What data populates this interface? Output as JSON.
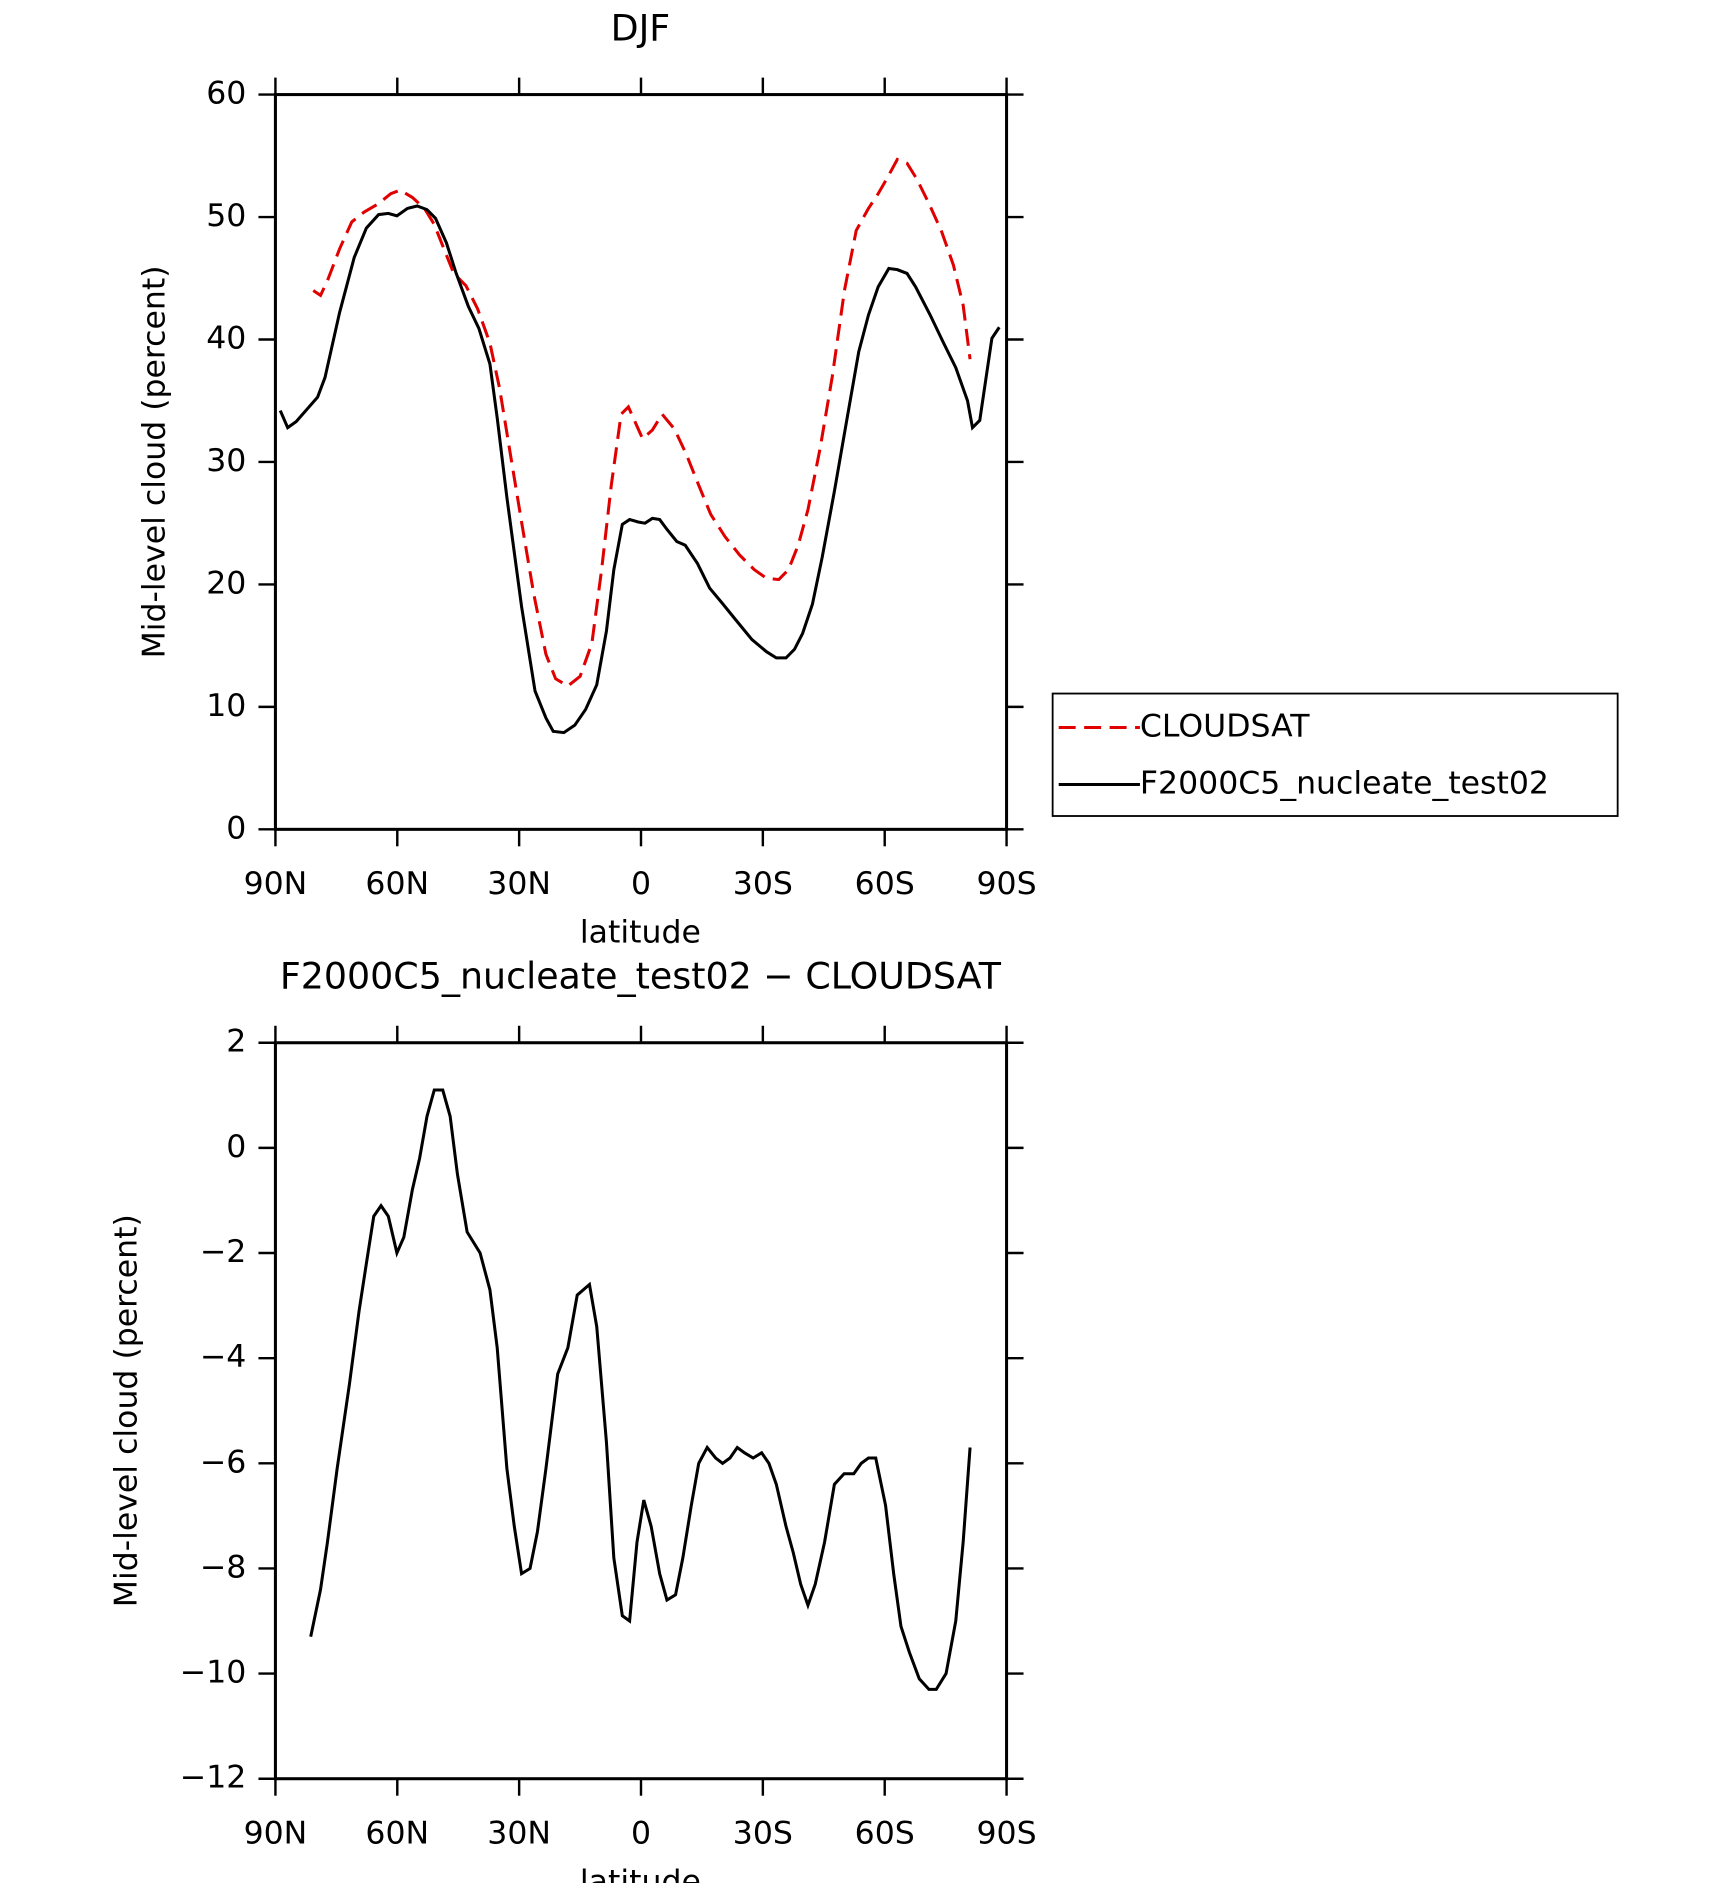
{
  "chart_data": [
    {
      "type": "line",
      "title": "DJF",
      "x_label": "latitude",
      "y_label": "Mid-level cloud (percent)",
      "xlim": [
        90,
        -90
      ],
      "xticks": [
        {
          "value": 90,
          "label": "90N"
        },
        {
          "value": 60,
          "label": "60N"
        },
        {
          "value": 30,
          "label": "30N"
        },
        0,
        {
          "value": -30,
          "label": "30S"
        },
        {
          "value": -60,
          "label": "60S"
        },
        {
          "value": -90,
          "label": "90S"
        }
      ],
      "ylim": [
        0,
        60
      ],
      "yticks": [
        0,
        10,
        20,
        30,
        40,
        50,
        60
      ],
      "legend": "right",
      "series": [
        {
          "name": "CLOUDSAT",
          "color": "#e00000",
          "dash": true,
          "x": [
            80.7,
            78.9,
            77.2,
            74.2,
            71.2,
            68.2,
            64.6,
            61.6,
            59.3,
            56.3,
            53.3,
            50.9,
            48.5,
            46.1,
            43.1,
            40.2,
            37.2,
            34.8,
            32.4,
            29.4,
            26.4,
            23.4,
            21.0,
            18.0,
            15.0,
            12.1,
            9.7,
            7.3,
            4.9,
            3.1,
            -0.4,
            -2.8,
            -5.2,
            -8.2,
            -11.2,
            -14.2,
            -17.2,
            -20.7,
            -24.3,
            -27.9,
            -30.9,
            -33.9,
            -36.3,
            -38.7,
            -41.1,
            -44.1,
            -47.1,
            -50.1,
            -53.0,
            -56.0,
            -58.4,
            -60.8,
            -63.1,
            -65.5,
            -67.9,
            -70.9,
            -73.9,
            -76.9,
            -79.3,
            -81.0
          ],
          "values": [
            44.0,
            43.6,
            44.8,
            47.4,
            49.6,
            50.4,
            51.1,
            51.9,
            52.2,
            51.6,
            50.7,
            49.4,
            47.4,
            45.4,
            44.4,
            42.5,
            39.7,
            36.0,
            31.1,
            25.1,
            19.2,
            14.3,
            12.3,
            11.7,
            12.5,
            15.2,
            21.2,
            28.1,
            33.9,
            34.5,
            31.9,
            32.6,
            33.9,
            32.7,
            30.6,
            28.1,
            25.7,
            23.9,
            22.4,
            21.2,
            20.5,
            20.4,
            21.2,
            23.2,
            26.1,
            31.1,
            37.0,
            44.0,
            48.9,
            50.7,
            51.9,
            53.3,
            54.7,
            54.4,
            53.1,
            51.1,
            48.9,
            46.1,
            42.8,
            38.4
          ]
        },
        {
          "name": "F2000C5_nucleate_test02",
          "color": "#000000",
          "dash": false,
          "x": [
            88.8,
            87.0,
            84.9,
            79.6,
            77.8,
            74.2,
            70.6,
            67.6,
            64.6,
            62.2,
            60.1,
            57.5,
            55.1,
            52.7,
            50.6,
            47.9,
            45.5,
            42.5,
            39.9,
            37.2,
            35.4,
            33.0,
            29.4,
            26.1,
            23.4,
            21.6,
            19.0,
            16.3,
            13.6,
            10.9,
            8.5,
            6.7,
            4.6,
            2.8,
            0.7,
            -1.0,
            -2.8,
            -4.6,
            -6.4,
            -8.8,
            -10.9,
            -13.9,
            -16.9,
            -19.9,
            -23.1,
            -27.3,
            -30.9,
            -33.3,
            -35.7,
            -37.8,
            -39.8,
            -42.2,
            -44.6,
            -47.6,
            -50.6,
            -53.6,
            -56.0,
            -58.4,
            -61.0,
            -63.1,
            -65.5,
            -67.6,
            -71.2,
            -74.5,
            -77.5,
            -80.4,
            -81.6,
            -83.4,
            -86.4,
            -88.2
          ],
          "values": [
            34.2,
            32.8,
            33.3,
            35.3,
            36.9,
            42.2,
            46.7,
            49.1,
            50.2,
            50.3,
            50.1,
            50.7,
            50.9,
            50.6,
            49.9,
            47.9,
            45.4,
            42.7,
            40.9,
            38.0,
            33.6,
            27.1,
            18.2,
            11.3,
            9.1,
            8.0,
            7.9,
            8.5,
            9.8,
            11.8,
            16.2,
            21.2,
            24.9,
            25.3,
            25.1,
            25.0,
            25.4,
            25.3,
            24.5,
            23.5,
            23.2,
            21.7,
            19.7,
            18.5,
            17.2,
            15.5,
            14.5,
            14.0,
            14.0,
            14.7,
            16.0,
            18.4,
            22.2,
            27.6,
            33.3,
            39.0,
            42.0,
            44.3,
            45.8,
            45.7,
            45.4,
            44.3,
            42.0,
            39.7,
            37.7,
            35.0,
            32.8,
            33.4,
            40.1,
            41.0
          ]
        }
      ]
    },
    {
      "type": "line",
      "title": "F2000C5_nucleate_test02 − CLOUDSAT",
      "x_label": "latitude",
      "y_label": "Mid-level cloud (percent)",
      "xlim": [
        90,
        -90
      ],
      "xticks": [
        {
          "value": 90,
          "label": "90N"
        },
        {
          "value": 60,
          "label": "60N"
        },
        {
          "value": 30,
          "label": "30N"
        },
        0,
        {
          "value": -30,
          "label": "30S"
        },
        {
          "value": -60,
          "label": "60S"
        },
        {
          "value": -90,
          "label": "90S"
        }
      ],
      "ylim": [
        -12,
        2
      ],
      "yticks": [
        {
          "value": -12,
          "label": "−12"
        },
        {
          "value": -10,
          "label": "−10"
        },
        {
          "value": -8,
          "label": "−8"
        },
        {
          "value": -6,
          "label": "−6"
        },
        {
          "value": -4,
          "label": "−4"
        },
        {
          "value": -2,
          "label": "−2"
        },
        0,
        2
      ],
      "series": [
        {
          "color": "#000000",
          "dash": false,
          "x": [
            81.3,
            78.9,
            77.2,
            74.8,
            71.8,
            69.4,
            67.6,
            65.8,
            64.0,
            62.2,
            60.1,
            58.4,
            56.3,
            54.5,
            52.7,
            50.9,
            48.8,
            47.0,
            45.2,
            42.8,
            39.6,
            37.2,
            35.4,
            33.0,
            31.2,
            29.4,
            27.3,
            25.5,
            23.4,
            20.5,
            18.0,
            15.7,
            12.7,
            10.9,
            8.5,
            6.7,
            4.6,
            2.8,
            1.0,
            -0.7,
            -2.5,
            -4.6,
            -6.4,
            -8.5,
            -10.3,
            -12.4,
            -14.2,
            -16.3,
            -18.4,
            -20.1,
            -21.9,
            -23.7,
            -25.5,
            -27.6,
            -29.7,
            -31.5,
            -33.3,
            -35.7,
            -37.5,
            -39.3,
            -41.1,
            -42.9,
            -45.2,
            -47.6,
            -50.0,
            -52.4,
            -54.2,
            -56.0,
            -57.8,
            -60.2,
            -62.2,
            -64.0,
            -66.1,
            -68.5,
            -70.9,
            -72.7,
            -75.1,
            -77.5,
            -79.3,
            -81.0
          ],
          "values": [
            -9.3,
            -8.4,
            -7.5,
            -6.1,
            -4.5,
            -3.1,
            -2.2,
            -1.3,
            -1.1,
            -1.3,
            -2.0,
            -1.7,
            -0.8,
            -0.2,
            0.6,
            1.1,
            1.1,
            0.6,
            -0.5,
            -1.6,
            -2.0,
            -2.7,
            -3.8,
            -6.1,
            -7.2,
            -8.1,
            -8.0,
            -7.3,
            -6.1,
            -4.3,
            -3.8,
            -2.8,
            -2.6,
            -3.4,
            -5.6,
            -7.8,
            -8.9,
            -9.0,
            -7.5,
            -6.7,
            -7.2,
            -8.1,
            -8.6,
            -8.5,
            -7.8,
            -6.8,
            -6.0,
            -5.7,
            -5.9,
            -6.0,
            -5.9,
            -5.7,
            -5.8,
            -5.9,
            -5.8,
            -6.0,
            -6.4,
            -7.2,
            -7.7,
            -8.3,
            -8.7,
            -8.3,
            -7.5,
            -6.4,
            -6.2,
            -6.2,
            -6.0,
            -5.9,
            -5.9,
            -6.8,
            -8.1,
            -9.1,
            -9.6,
            -10.1,
            -10.3,
            -10.3,
            -10.0,
            -9.0,
            -7.5,
            -5.7
          ]
        }
      ]
    }
  ]
}
